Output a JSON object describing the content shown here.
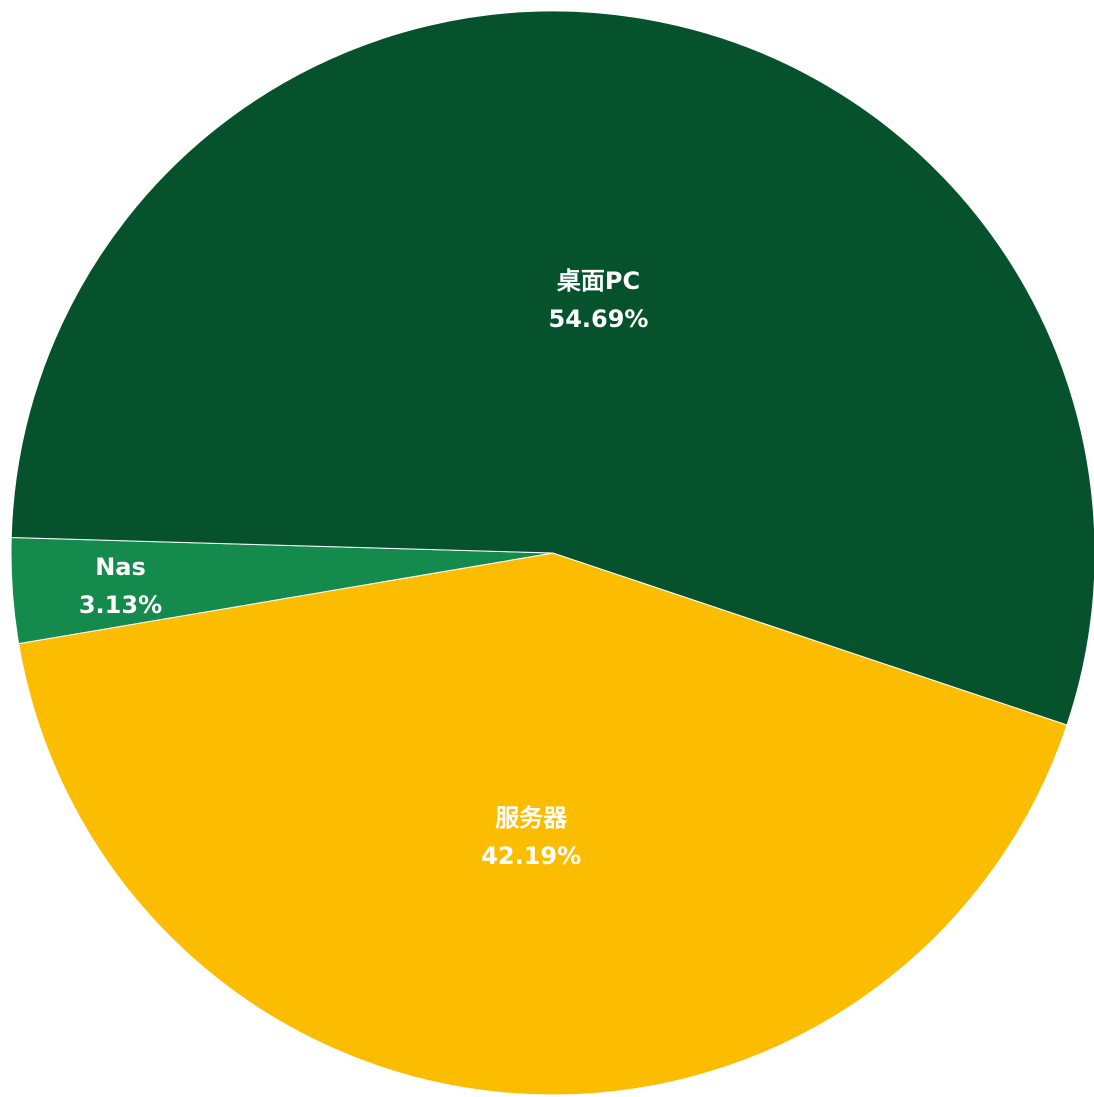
{
  "chart_data": {
    "type": "pie",
    "title": "",
    "slices": [
      {
        "label": "桌面PC",
        "value": 54.69,
        "display": "54.69%",
        "color": "#06522d"
      },
      {
        "label": "服务器",
        "value": 42.19,
        "display": "42.19%",
        "color": "#fcbd00"
      },
      {
        "label": "Nas",
        "value": 3.13,
        "display": "3.13%",
        "color": "#158a4d"
      }
    ],
    "start_direction": "lower-right edge, slices drawn clockwise starting with 服务器",
    "legend": "none",
    "data_labels": "inside"
  }
}
